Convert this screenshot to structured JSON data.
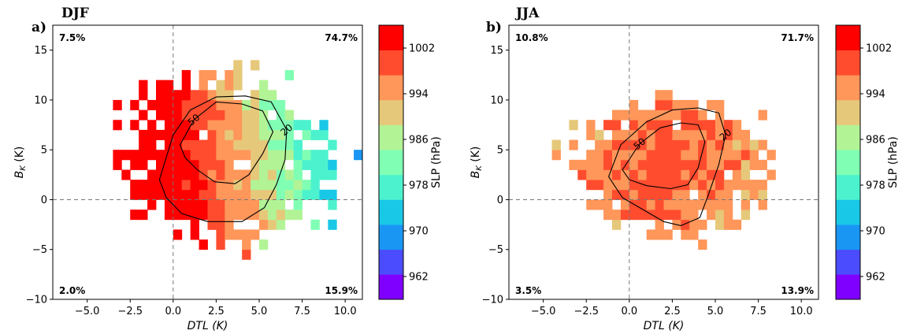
{
  "figure": {
    "colormap": [
      "#8000ff",
      "#4c4cff",
      "#1996f3",
      "#19c8e6",
      "#4cf2ce",
      "#80ffb4",
      "#b2f396",
      "#e6c87a",
      "#ff965a",
      "#ff4c2e",
      "#ff0000"
    ]
  },
  "chart_data": [
    {
      "type": "heatmap",
      "panel": "a)",
      "title": "DJF",
      "xlabel": "DTL (K)",
      "ylabel": "B_K (K)",
      "ylabel_main": "B",
      "ylabel_sub": "K",
      "ylabel_unit": " (K)",
      "xlim": [
        -7,
        11
      ],
      "ylim": [
        -10,
        17.5
      ],
      "xticks": [
        -5.0,
        -2.5,
        0.0,
        2.5,
        5.0,
        7.5,
        10.0
      ],
      "xtick_labels": [
        "−5.0",
        "−2.5",
        "0.0",
        "2.5",
        "5.0",
        "7.5",
        "10.0"
      ],
      "yticks": [
        -10,
        -5,
        0,
        5,
        10,
        15
      ],
      "ytick_labels": [
        "−10",
        "−5",
        "0",
        "5",
        "10",
        "15"
      ],
      "quadrants": {
        "upper_left": "7.5%",
        "upper_right": "74.7%",
        "lower_left": "2.0%",
        "lower_right": "15.9%"
      },
      "contours": [
        {
          "label": "50",
          "points": [
            [
              0.4,
              5.5
            ],
            [
              1.2,
              8.0
            ],
            [
              2.5,
              9.8
            ],
            [
              4.0,
              9.6
            ],
            [
              5.2,
              8.9
            ],
            [
              5.8,
              6.8
            ],
            [
              5.2,
              4.6
            ],
            [
              4.4,
              2.5
            ],
            [
              3.6,
              1.6
            ],
            [
              2.4,
              1.8
            ],
            [
              1.4,
              3.0
            ],
            [
              0.7,
              4.2
            ],
            [
              0.4,
              5.5
            ]
          ]
        },
        {
          "label": "20",
          "points": [
            [
              -0.8,
              2.0
            ],
            [
              0.0,
              6.5
            ],
            [
              1.0,
              9.0
            ],
            [
              2.5,
              10.3
            ],
            [
              4.2,
              10.4
            ],
            [
              5.7,
              9.8
            ],
            [
              6.6,
              7.0
            ],
            [
              6.5,
              4.0
            ],
            [
              6.0,
              1.5
            ],
            [
              5.3,
              -0.8
            ],
            [
              4.0,
              -2.2
            ],
            [
              2.0,
              -2.2
            ],
            [
              0.5,
              -1.4
            ],
            [
              -0.4,
              0.2
            ],
            [
              -0.8,
              2.0
            ]
          ]
        }
      ],
      "colorbar": {
        "label": "SLP (hPa)",
        "range": [
          958,
          1006
        ],
        "ticks": [
          962,
          970,
          978,
          986,
          994,
          1002
        ]
      }
    },
    {
      "type": "heatmap",
      "panel": "b)",
      "title": "JJA",
      "xlabel": "DTL (K)",
      "ylabel": "B_K (K)",
      "ylabel_main": "B",
      "ylabel_sub": "K",
      "ylabel_unit": " (K)",
      "xlim": [
        -7,
        11
      ],
      "ylim": [
        -10,
        17.5
      ],
      "xticks": [
        -5.0,
        -2.5,
        0.0,
        2.5,
        5.0,
        7.5,
        10.0
      ],
      "xtick_labels": [
        "−5.0",
        "−2.5",
        "0.0",
        "2.5",
        "5.0",
        "7.5",
        "10.0"
      ],
      "yticks": [
        -10,
        -5,
        0,
        5,
        10,
        15
      ],
      "ytick_labels": [
        "−10",
        "−5",
        "0",
        "5",
        "10",
        "15"
      ],
      "quadrants": {
        "upper_left": "10.8%",
        "upper_right": "71.7%",
        "lower_left": "3.5%",
        "lower_right": "13.9%"
      },
      "contours": [
        {
          "label": "50",
          "points": [
            [
              -0.4,
              3.0
            ],
            [
              0.6,
              5.6
            ],
            [
              1.8,
              7.2
            ],
            [
              3.0,
              7.7
            ],
            [
              4.0,
              7.5
            ],
            [
              4.4,
              5.8
            ],
            [
              4.0,
              3.2
            ],
            [
              3.4,
              1.5
            ],
            [
              2.4,
              1.1
            ],
            [
              1.0,
              1.4
            ],
            [
              0.0,
              2.0
            ],
            [
              -0.4,
              3.0
            ]
          ]
        },
        {
          "label": "20",
          "points": [
            [
              -1.2,
              2.3
            ],
            [
              -0.5,
              5.5
            ],
            [
              1.0,
              7.8
            ],
            [
              2.5,
              9.0
            ],
            [
              4.0,
              9.2
            ],
            [
              5.2,
              8.7
            ],
            [
              5.6,
              6.5
            ],
            [
              5.2,
              3.5
            ],
            [
              4.6,
              0.5
            ],
            [
              4.1,
              -1.8
            ],
            [
              3.0,
              -2.6
            ],
            [
              2.0,
              -2.2
            ],
            [
              0.8,
              -1.0
            ],
            [
              -0.4,
              0.2
            ],
            [
              -1.2,
              2.3
            ]
          ]
        }
      ],
      "colorbar": {
        "label": "SLP (hPa)",
        "range": [
          958,
          1006
        ],
        "ticks": [
          962,
          970,
          978,
          986,
          994,
          1002
        ]
      }
    }
  ]
}
